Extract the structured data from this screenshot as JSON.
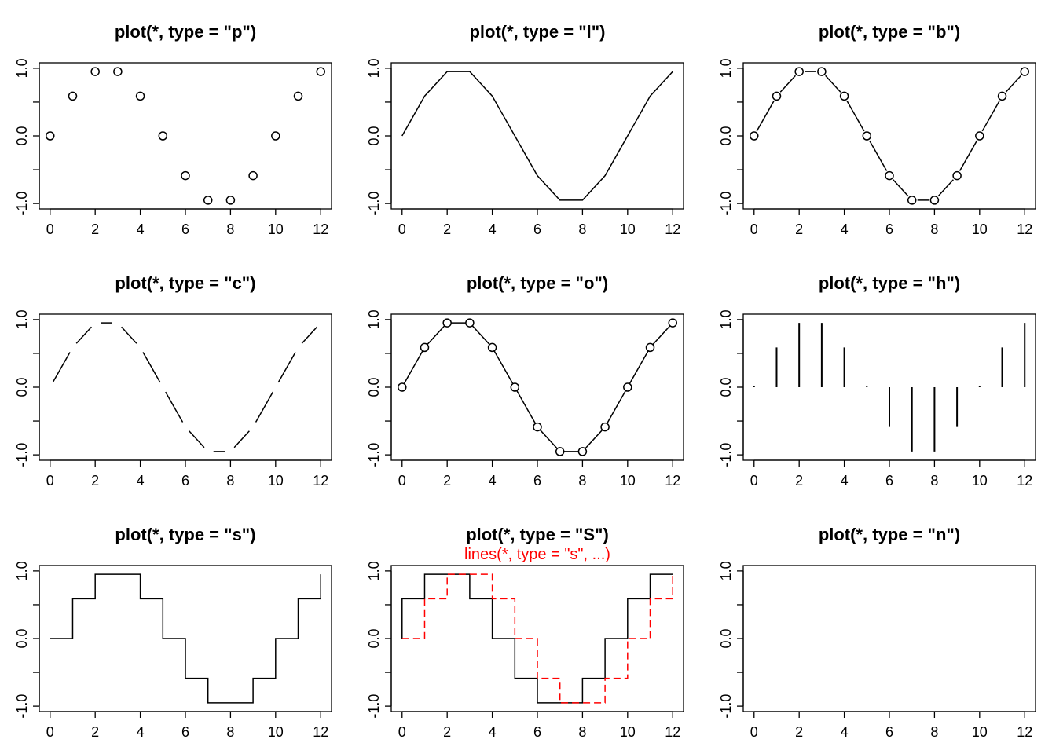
{
  "chart_data": [
    {
      "type": "scatter",
      "plot_type": "p",
      "title": "plot(*, type = \"p\")",
      "x": [
        0,
        1,
        2,
        3,
        4,
        5,
        6,
        7,
        8,
        9,
        10,
        11,
        12
      ],
      "y": [
        0,
        0.5878,
        0.9511,
        0.9511,
        0.5878,
        0,
        -0.5878,
        -0.9511,
        -0.9511,
        -0.5878,
        0,
        0.5878,
        0.9511
      ],
      "xlim": [
        0,
        12
      ],
      "ylim": [
        -1,
        1
      ],
      "xticks": [
        "0",
        "2",
        "4",
        "6",
        "8",
        "10",
        "12"
      ],
      "yticks": [
        "-1.0",
        "0.0",
        "1.0"
      ],
      "xlabel": "",
      "ylabel": ""
    },
    {
      "type": "line",
      "plot_type": "l",
      "title": "plot(*, type = \"l\")",
      "x": [
        0,
        1,
        2,
        3,
        4,
        5,
        6,
        7,
        8,
        9,
        10,
        11,
        12
      ],
      "y": [
        0,
        0.5878,
        0.9511,
        0.9511,
        0.5878,
        0,
        -0.5878,
        -0.9511,
        -0.9511,
        -0.5878,
        0,
        0.5878,
        0.9511
      ],
      "xlim": [
        0,
        12
      ],
      "ylim": [
        -1,
        1
      ],
      "xticks": [
        "0",
        "2",
        "4",
        "6",
        "8",
        "10",
        "12"
      ],
      "yticks": [
        "-1.0",
        "0.0",
        "1.0"
      ],
      "xlabel": "",
      "ylabel": ""
    },
    {
      "type": "line",
      "plot_type": "b",
      "title": "plot(*, type = \"b\")",
      "x": [
        0,
        1,
        2,
        3,
        4,
        5,
        6,
        7,
        8,
        9,
        10,
        11,
        12
      ],
      "y": [
        0,
        0.5878,
        0.9511,
        0.9511,
        0.5878,
        0,
        -0.5878,
        -0.9511,
        -0.9511,
        -0.5878,
        0,
        0.5878,
        0.9511
      ],
      "xlim": [
        0,
        12
      ],
      "ylim": [
        -1,
        1
      ],
      "xticks": [
        "0",
        "2",
        "4",
        "6",
        "8",
        "10",
        "12"
      ],
      "yticks": [
        "-1.0",
        "0.0",
        "1.0"
      ],
      "xlabel": "",
      "ylabel": ""
    },
    {
      "type": "line",
      "plot_type": "c",
      "title": "plot(*, type = \"c\")",
      "x": [
        0,
        1,
        2,
        3,
        4,
        5,
        6,
        7,
        8,
        9,
        10,
        11,
        12
      ],
      "y": [
        0,
        0.5878,
        0.9511,
        0.9511,
        0.5878,
        0,
        -0.5878,
        -0.9511,
        -0.9511,
        -0.5878,
        0,
        0.5878,
        0.9511
      ],
      "xlim": [
        0,
        12
      ],
      "ylim": [
        -1,
        1
      ],
      "xticks": [
        "0",
        "2",
        "4",
        "6",
        "8",
        "10",
        "12"
      ],
      "yticks": [
        "-1.0",
        "0.0",
        "1.0"
      ],
      "xlabel": "",
      "ylabel": ""
    },
    {
      "type": "line",
      "plot_type": "o",
      "title": "plot(*, type = \"o\")",
      "x": [
        0,
        1,
        2,
        3,
        4,
        5,
        6,
        7,
        8,
        9,
        10,
        11,
        12
      ],
      "y": [
        0,
        0.5878,
        0.9511,
        0.9511,
        0.5878,
        0,
        -0.5878,
        -0.9511,
        -0.9511,
        -0.5878,
        0,
        0.5878,
        0.9511
      ],
      "xlim": [
        0,
        12
      ],
      "ylim": [
        -1,
        1
      ],
      "xticks": [
        "0",
        "2",
        "4",
        "6",
        "8",
        "10",
        "12"
      ],
      "yticks": [
        "-1.0",
        "0.0",
        "1.0"
      ],
      "xlabel": "",
      "ylabel": ""
    },
    {
      "type": "bar",
      "plot_type": "h",
      "title": "plot(*, type = \"h\")",
      "x": [
        0,
        1,
        2,
        3,
        4,
        5,
        6,
        7,
        8,
        9,
        10,
        11,
        12
      ],
      "y": [
        0,
        0.5878,
        0.9511,
        0.9511,
        0.5878,
        0,
        -0.5878,
        -0.9511,
        -0.9511,
        -0.5878,
        0,
        0.5878,
        0.9511
      ],
      "xlim": [
        0,
        12
      ],
      "ylim": [
        -1,
        1
      ],
      "xticks": [
        "0",
        "2",
        "4",
        "6",
        "8",
        "10",
        "12"
      ],
      "yticks": [
        "-1.0",
        "0.0",
        "1.0"
      ],
      "xlabel": "",
      "ylabel": ""
    },
    {
      "type": "line",
      "plot_type": "s",
      "title": "plot(*, type = \"s\")",
      "x": [
        0,
        1,
        2,
        3,
        4,
        5,
        6,
        7,
        8,
        9,
        10,
        11,
        12
      ],
      "y": [
        0,
        0.5878,
        0.9511,
        0.9511,
        0.5878,
        0,
        -0.5878,
        -0.9511,
        -0.9511,
        -0.5878,
        0,
        0.5878,
        0.9511
      ],
      "xlim": [
        0,
        12
      ],
      "ylim": [
        -1,
        1
      ],
      "xticks": [
        "0",
        "2",
        "4",
        "6",
        "8",
        "10",
        "12"
      ],
      "yticks": [
        "-1.0",
        "0.0",
        "1.0"
      ],
      "xlabel": "",
      "ylabel": ""
    },
    {
      "type": "line",
      "plot_type": "S",
      "title": "plot(*, type = \"S\")",
      "annotation": "lines(*, type = \"s\", ...)",
      "x": [
        0,
        1,
        2,
        3,
        4,
        5,
        6,
        7,
        8,
        9,
        10,
        11,
        12
      ],
      "y": [
        0,
        0.5878,
        0.9511,
        0.9511,
        0.5878,
        0,
        -0.5878,
        -0.9511,
        -0.9511,
        -0.5878,
        0,
        0.5878,
        0.9511
      ],
      "overlay": {
        "step": "s",
        "color": "#ff0000",
        "dash": true,
        "x": [
          0,
          1,
          2,
          3,
          4,
          5,
          6,
          7,
          8,
          9,
          10,
          11,
          12
        ],
        "y": [
          0,
          0.5878,
          0.9511,
          0.9511,
          0.5878,
          0,
          -0.5878,
          -0.9511,
          -0.9511,
          -0.5878,
          0,
          0.5878,
          0.9511
        ]
      },
      "xlim": [
        0,
        12
      ],
      "ylim": [
        -1,
        1
      ],
      "xticks": [
        "0",
        "2",
        "4",
        "6",
        "8",
        "10",
        "12"
      ],
      "yticks": [
        "-1.0",
        "0.0",
        "1.0"
      ],
      "xlabel": "",
      "ylabel": ""
    },
    {
      "type": "scatter",
      "plot_type": "n",
      "title": "plot(*, type = \"n\")",
      "x": [],
      "y": [],
      "xlim": [
        0,
        12
      ],
      "ylim": [
        -1,
        1
      ],
      "xticks": [
        "0",
        "2",
        "4",
        "6",
        "8",
        "10",
        "12"
      ],
      "yticks": [
        "-1.0",
        "0.0",
        "1.0"
      ],
      "xlabel": "",
      "ylabel": ""
    }
  ]
}
